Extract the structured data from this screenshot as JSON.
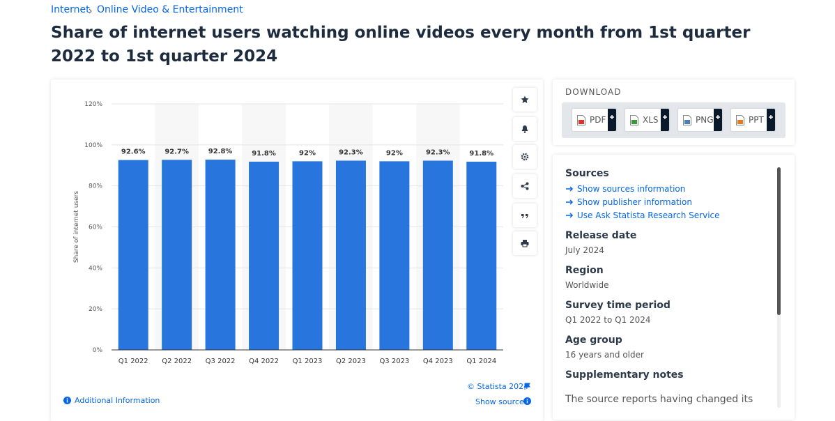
{
  "breadcrumb": [
    "Internet",
    "Online Video & Entertainment"
  ],
  "title": "Share of internet users watching online videos every month from 1st quarter 2022 to 1st quarter 2024",
  "chart_data": {
    "type": "bar",
    "y_label": "Share of internet users",
    "categories": [
      "Q1 2022",
      "Q2 2022",
      "Q3 2022",
      "Q4 2022",
      "Q1 2023",
      "Q2 2023",
      "Q3 2023",
      "Q4 2023",
      "Q1 2024"
    ],
    "values": [
      92.6,
      92.7,
      92.8,
      91.8,
      92,
      92.3,
      92,
      92.3,
      91.8
    ],
    "value_labels": [
      "92.6%",
      "92.7%",
      "92.8%",
      "91.8%",
      "92%",
      "92.3%",
      "92%",
      "92.3%",
      "91.8%"
    ],
    "color": "#2876dd",
    "ylim": [
      0,
      120
    ],
    "yticks": [
      {
        "value": 0,
        "label": "0%"
      },
      {
        "value": 20,
        "label": "20%"
      },
      {
        "value": 40,
        "label": "40%"
      },
      {
        "value": 60,
        "label": "60%"
      },
      {
        "value": 80,
        "label": "80%"
      },
      {
        "value": 100,
        "label": "100%"
      },
      {
        "value": 120,
        "label": "120%"
      }
    ],
    "grid": true
  },
  "chart_footer": {
    "credit": "© Statista 2024",
    "additional_info": "Additional Information",
    "show_source": "Show source"
  },
  "download": {
    "title": "DOWNLOAD",
    "formats": [
      "PDF",
      "XLS",
      "PNG",
      "PPT"
    ]
  },
  "details": {
    "sources": {
      "heading": "Sources",
      "links": [
        "Show sources information",
        "Show publisher information",
        "Use Ask Statista Research Service"
      ]
    },
    "sections": [
      {
        "heading": "Release date",
        "text": "July 2024"
      },
      {
        "heading": "Region",
        "text": "Worldwide"
      },
      {
        "heading": "Survey time period",
        "text": "Q1 2022 to Q1 2024"
      },
      {
        "heading": "Age group",
        "text": "16 years and older"
      },
      {
        "heading": "Supplementary notes",
        "text": "The source reports having changed its"
      }
    ]
  }
}
